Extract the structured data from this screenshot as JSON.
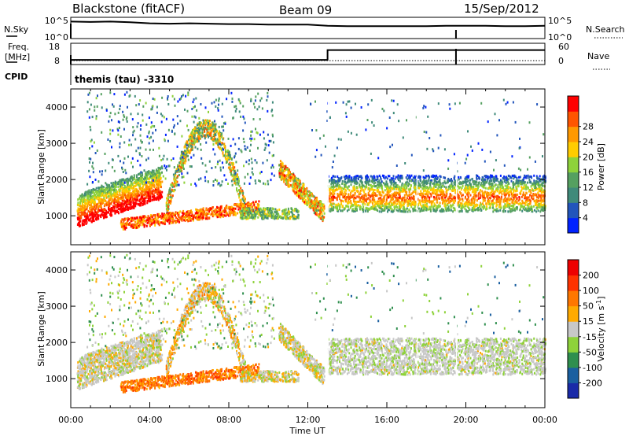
{
  "header": {
    "station": "Blackstone (fitACF)",
    "beam": "Beam 09",
    "date": "15/Sep/2012"
  },
  "panel_labels": {
    "nsky": "N.Sky",
    "nsearch": "N.Search",
    "freq_line1": "Freq.",
    "freq_line2": "[MHz]",
    "nave": "Nave",
    "cpid": "CPID",
    "cpid_value": "themis (tau) -3310"
  },
  "chart_data": [
    {
      "type": "line",
      "name": "noise",
      "ylim_labels": [
        "10^0",
        "10^5"
      ],
      "right_labels": [
        "10^0",
        "10^5"
      ],
      "x": [
        "00:00",
        "01:00",
        "02:00",
        "03:00",
        "04:00",
        "05:00",
        "06:00",
        "07:00",
        "08:00",
        "09:00",
        "10:00",
        "11:00",
        "12:00",
        "13:00",
        "14:00",
        "15:00",
        "16:00",
        "17:00",
        "18:00",
        "19:00",
        "19:30",
        "20:00",
        "21:00",
        "22:00",
        "23:00",
        "24:00"
      ],
      "values": [
        0.8,
        0.78,
        0.8,
        0.77,
        0.72,
        0.7,
        0.72,
        0.7,
        0.68,
        0.68,
        0.66,
        0.66,
        0.66,
        0.6,
        0.58,
        0.58,
        0.58,
        0.58,
        0.58,
        0.6,
        0.6,
        0.6,
        0.6,
        0.58,
        0.58,
        0.6
      ]
    },
    {
      "type": "line",
      "name": "frequency",
      "left_ticks": [
        "8",
        "18"
      ],
      "right_ticks": [
        "0",
        "60"
      ],
      "x": [
        "00:00",
        "13:00",
        "13:00",
        "24:00"
      ],
      "values": [
        10.2,
        10.2,
        14.8,
        14.8
      ]
    },
    {
      "type": "heatmap",
      "name": "power",
      "xlabel": "",
      "ylabel": "Slant Range [km]",
      "x_ticks": [
        "00:00",
        "04:00",
        "08:00",
        "12:00",
        "16:00",
        "20:00",
        "00:00"
      ],
      "y_ticks": [
        1000,
        2000,
        3000,
        4000
      ],
      "ylim": [
        200,
        4500
      ],
      "colorbar": {
        "label": "Power [dB]",
        "ticks": [
          "4",
          "8",
          "12",
          "16",
          "20",
          "24",
          "28"
        ],
        "colors": [
          "#0022ff",
          "#2255bb",
          "#3f8a7a",
          "#55a060",
          "#8ed23a",
          "#ffcc00",
          "#ff9900",
          "#ff5500",
          "#ff0000"
        ]
      }
    },
    {
      "type": "heatmap",
      "name": "velocity",
      "xlabel": "Time UT",
      "ylabel": "Slant Range [km]",
      "x_ticks": [
        "00:00",
        "04:00",
        "08:00",
        "12:00",
        "16:00",
        "20:00",
        "00:00"
      ],
      "y_ticks": [
        1000,
        2000,
        3000,
        4000
      ],
      "ylim": [
        200,
        4500
      ],
      "colorbar": {
        "label": "Velocity [m s",
        "label_sup": "-1",
        "label_end": "]",
        "ticks": [
          "200",
          "100",
          "50",
          "15",
          "-15",
          "-50",
          "-100",
          "-200"
        ],
        "colors": [
          "#1a2aa8",
          "#1a5fa0",
          "#2f8f4e",
          "#8ed23a",
          "#c8c8c8",
          "#ffaa00",
          "#ff7700",
          "#ff3300",
          "#ee0000"
        ]
      }
    }
  ]
}
